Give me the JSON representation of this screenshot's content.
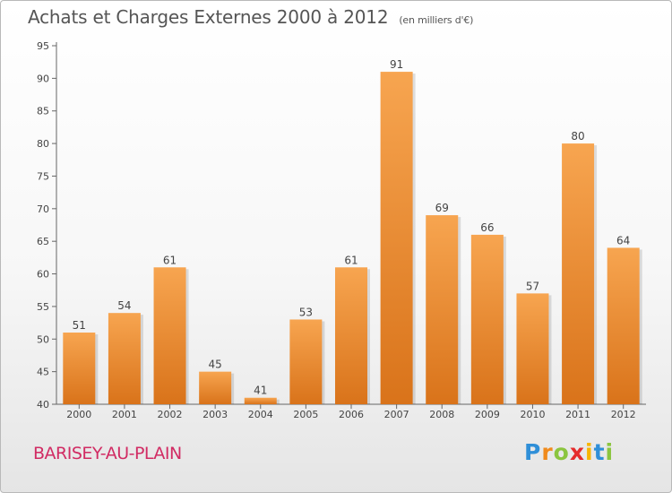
{
  "chart_data": {
    "type": "bar",
    "title": "Achats et Charges Externes 2000 à 2012",
    "subtitle": "(en milliers d'€)",
    "categories": [
      "2000",
      "2001",
      "2002",
      "2003",
      "2004",
      "2005",
      "2006",
      "2007",
      "2008",
      "2009",
      "2010",
      "2011",
      "2012"
    ],
    "values": [
      51,
      54,
      61,
      45,
      41,
      53,
      61,
      91,
      69,
      66,
      57,
      80,
      64
    ],
    "ylim": [
      40,
      95
    ],
    "yticks": [
      40,
      45,
      50,
      55,
      60,
      65,
      70,
      75,
      80,
      85,
      90,
      95
    ],
    "grid": false,
    "bar_color_top": "#f7a550",
    "bar_color_bottom": "#d9731a"
  },
  "commune": "BARISEY-AU-PLAIN",
  "logo": {
    "letters": [
      "P",
      "r",
      "o",
      "x",
      "i",
      "t",
      "i"
    ],
    "text": "Proxiti"
  },
  "colors": {
    "commune": "#d12b63",
    "text": "#555555"
  }
}
